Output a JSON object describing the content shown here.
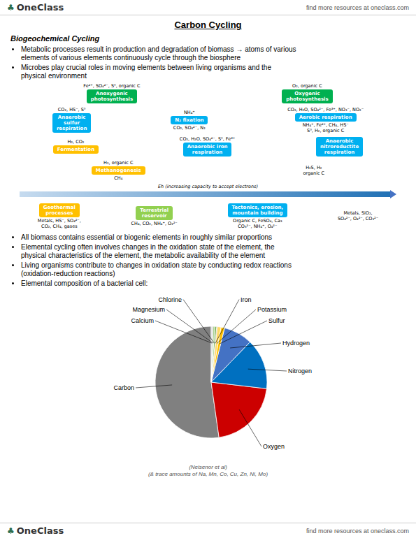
{
  "chart_data": {
    "type": "pie",
    "title": "Carbon Cycling",
    "subtitle": "Biogeochemical Cycling",
    "categories": [
      "Carbon",
      "Oxygen",
      "Nitrogen",
      "Hydrogen",
      "Sulfur",
      "Potassium",
      "Iron",
      "Chlorine",
      "Magnesium",
      "Calcium"
    ],
    "values": [
      50,
      20,
      14,
      8,
      1,
      1,
      0.2,
      0.5,
      0.5,
      0.5
    ],
    "colors": [
      "#808080",
      "#cc0000",
      "#0070c0",
      "#4472c4",
      "#ffc000",
      "#ffd966",
      "#c55a11",
      "#70ad47",
      "#a9d18e",
      "#d9d9d9"
    ],
    "annotations": [
      {
        "text": "OneClass"
      },
      {
        "text": "♣",
        "color": "#2d6e4e"
      },
      {
        "text": "find more resources at oneclass.com"
      },
      {
        "text": "OneClass"
      },
      {
        "text": "♣",
        "color": "#2d6e4e"
      },
      {
        "text": "find more resources at oneclass.com"
      },
      {
        "text": "Metabolic processes result in production and degradation of biomass → atoms of various\nelements of various elements continuously cycle through the biosphere"
      },
      {
        "text": "Microbes play crucial roles in moving elements between living organisms and the\nphysical environment"
      },
      {
        "text": "All biomass contains essential or biogenic elements in roughly similar proportions"
      },
      {
        "text": "Elemental cycling often involves changes in the oxidation state of the element, the\nphysical characteristics of the element, the metabolic availability of the element"
      },
      {
        "text": "Living organisms contribute to changes in oxidation state by conducting redox reactions\n(oxidation-reduction reactions)"
      },
      {
        "text": "Elemental composition of a bacterial cell:"
      },
      {
        "text": "Anoxygenic\nphotosynthesis",
        "color": "#00b050"
      },
      {
        "text": "Oxygenic\nphotosynthesis",
        "color": "#00b050"
      },
      {
        "text": "Anaerobic\nsulfur\nrespiration",
        "color": "#00b0f0"
      },
      {
        "text": "N₂ fixation",
        "color": "#00b0f0"
      },
      {
        "text": "Aerobic respiration",
        "color": "#00b0f0"
      },
      {
        "text": "Fermentation",
        "color": "#ffc000"
      },
      {
        "text": "Anaerobic iron\nrespiration",
        "color": "#00b0f0"
      },
      {
        "text": "Anaerobic\nnitroreductite\nrespiration",
        "color": "#00b0f0"
      },
      {
        "text": "Methanogenesis",
        "color": "#ffc000"
      },
      {
        "text": "Geothermal\nprocesses",
        "color": "#ffc000"
      },
      {
        "text": "Terrestrial\nreservoir",
        "color": "#92d050"
      },
      {
        "text": "Tectonics, erosion,\nmountain building",
        "color": "#00b0f0"
      },
      {
        "text": "Eh (increasing capacity to accept electrons)"
      },
      {
        "text": "Fe²⁺, SO₄²⁻, S⁰, organic C"
      },
      {
        "text": "O₂, organic C"
      },
      {
        "text": "CO₂, HS⁻, S⁰"
      },
      {
        "text": "H₂, CO₂"
      },
      {
        "text": "CO₂, H₂O, SO₄²⁻, S⁰, Fe³⁺"
      },
      {
        "text": "H₂, organic C"
      },
      {
        "text": "CH₄"
      },
      {
        "text": "H₂S, H₂"
      },
      {
        "text": "organic C"
      },
      {
        "text": "NH₄⁺"
      },
      {
        "text": "CO₂, SO₄²⁻, N₂"
      },
      {
        "text": "CO₂, H₂O, SO₄²⁻, Fe³⁺, NO₃⁻, NO₂⁻"
      },
      {
        "text": "NH₄⁺, Fe²⁺, CH₄, HS⁻"
      },
      {
        "text": "S⁰, H₂, organic C"
      },
      {
        "text": "Metals, HS⁻, SO₄²⁻,"
      },
      {
        "text": "CO₂, CH₄, gases"
      },
      {
        "text": "CH₄, CO₂, NH₄⁺, O₂²⁻"
      },
      {
        "text": "Organic C, FeSO₄, Ca₃"
      },
      {
        "text": "CO₃²⁻, NH₄⁺, O₄²⁻"
      },
      {
        "text": "Metals, SiO₂,"
      },
      {
        "text": "SO₄²⁻, O₄²⁻, CO₃²⁻"
      },
      {
        "text": "(& trace amounts of Na, Mn, Co, Cu, Zn, Ni, Mo)"
      },
      {
        "text": "(Neisenor et al)"
      }
    ]
  }
}
